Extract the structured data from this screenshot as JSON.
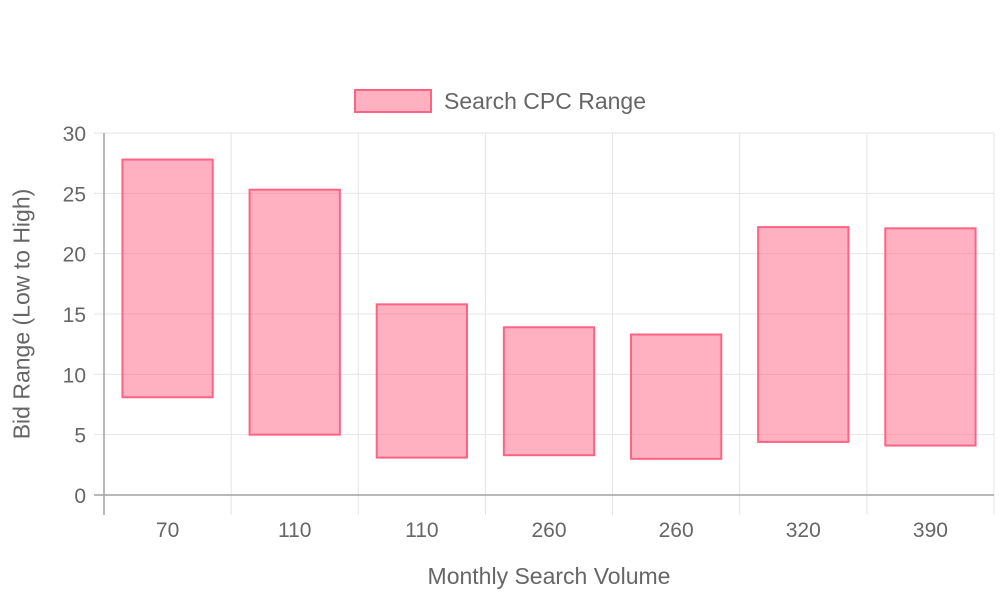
{
  "chart_data": {
    "type": "bar",
    "subtype": "floating-range",
    "legend": {
      "label": "Search CPC Range",
      "position": "top"
    },
    "xlabel": "Monthly Search Volume",
    "ylabel": "Bid Range (Low to High)",
    "categories": [
      "70",
      "110",
      "110",
      "260",
      "260",
      "320",
      "390"
    ],
    "series": [
      {
        "name": "Search CPC Range",
        "ranges": [
          [
            8.1,
            27.8
          ],
          [
            5.0,
            25.3
          ],
          [
            3.1,
            15.8
          ],
          [
            3.3,
            13.9
          ],
          [
            3.0,
            13.3
          ],
          [
            4.4,
            22.2
          ],
          [
            4.1,
            22.1
          ]
        ]
      }
    ],
    "ylim": [
      0,
      30
    ],
    "yticks": [
      0,
      5,
      10,
      15,
      20,
      25,
      30
    ],
    "grid": true,
    "colors": {
      "fill": "rgba(255,99,132,0.5)",
      "border": "#ff6384",
      "grid": "#e5e5e5",
      "axis": "#a0a0a0",
      "text": "#666666"
    }
  }
}
